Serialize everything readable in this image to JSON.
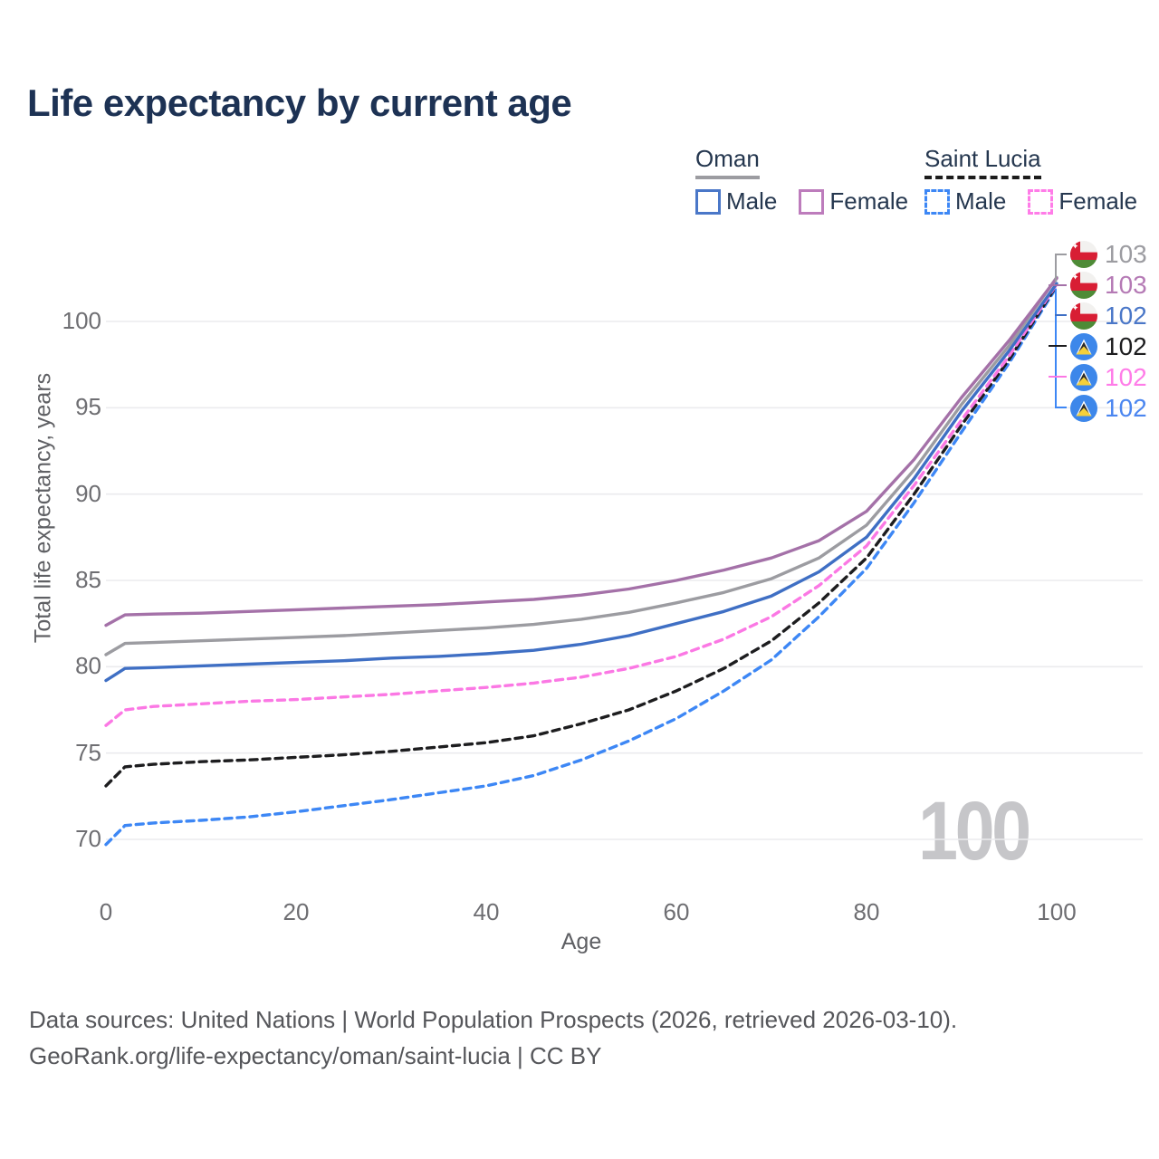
{
  "title": "Life expectancy by current age",
  "legend": {
    "groups": [
      {
        "title": "Oman",
        "underline_color": "#9c9ca1",
        "underline_style": "solid",
        "items": [
          {
            "label": "Male",
            "color": "#4a77c8",
            "dashed": false
          },
          {
            "label": "Female",
            "color": "#bd7cbc",
            "dashed": false
          }
        ]
      },
      {
        "title": "Saint Lucia",
        "underline_color": "#1c1c1c",
        "underline_style": "dashed",
        "items": [
          {
            "label": "Male",
            "color": "#3d87f5",
            "dashed": true
          },
          {
            "label": "Female",
            "color": "#ff7ce8",
            "dashed": true
          }
        ]
      }
    ]
  },
  "chart_data": {
    "type": "line",
    "title": "Life expectancy by current age",
    "xlabel": "Age",
    "ylabel": "Total life expectancy, years",
    "x_ticks": [
      0,
      20,
      40,
      60,
      80,
      100
    ],
    "y_ticks": [
      70,
      75,
      80,
      85,
      90,
      95,
      100
    ],
    "xlim": [
      0,
      100
    ],
    "ylim": [
      69,
      104
    ],
    "grid": "horizontal",
    "legend_position": "top-right",
    "ages": [
      0,
      2,
      5,
      10,
      15,
      20,
      25,
      30,
      35,
      40,
      45,
      50,
      55,
      60,
      65,
      70,
      75,
      80,
      85,
      90,
      95,
      100
    ],
    "series": [
      {
        "name": "Saint Lucia Male",
        "color": "#3d87f5",
        "dashed": true,
        "values": [
          69.7,
          70.8,
          70.95,
          71.1,
          71.3,
          71.6,
          71.95,
          72.3,
          72.7,
          73.1,
          73.7,
          74.6,
          75.7,
          77.0,
          78.6,
          80.4,
          82.9,
          85.7,
          89.5,
          93.6,
          97.6,
          102.0
        ]
      },
      {
        "name": "Saint Lucia Both sexes",
        "color": "#1d1d1f",
        "dashed": true,
        "values": [
          73.1,
          74.2,
          74.35,
          74.5,
          74.6,
          74.75,
          74.9,
          75.1,
          75.35,
          75.6,
          76.0,
          76.7,
          77.5,
          78.6,
          79.9,
          81.5,
          83.7,
          86.3,
          90.0,
          94.0,
          97.8,
          102.1
        ]
      },
      {
        "name": "Saint Lucia Female",
        "color": "#fb78e4",
        "dashed": true,
        "values": [
          76.6,
          77.5,
          77.7,
          77.85,
          78.0,
          78.1,
          78.25,
          78.4,
          78.6,
          78.8,
          79.05,
          79.4,
          79.9,
          80.6,
          81.6,
          82.9,
          84.7,
          87.0,
          90.5,
          94.3,
          98.0,
          102.15
        ]
      },
      {
        "name": "Oman Male",
        "color": "#3f6fc4",
        "dashed": false,
        "values": [
          79.2,
          79.9,
          79.95,
          80.05,
          80.15,
          80.25,
          80.35,
          80.5,
          80.6,
          80.75,
          80.95,
          81.3,
          81.8,
          82.5,
          83.2,
          84.1,
          85.5,
          87.5,
          90.9,
          94.8,
          98.3,
          102.2
        ]
      },
      {
        "name": "Oman Both sexes",
        "color": "#9c9ca1",
        "dashed": false,
        "values": [
          80.7,
          81.35,
          81.4,
          81.5,
          81.6,
          81.7,
          81.8,
          81.95,
          82.1,
          82.25,
          82.45,
          82.75,
          83.15,
          83.7,
          84.3,
          85.1,
          86.3,
          88.2,
          91.4,
          95.2,
          98.6,
          102.55
        ]
      },
      {
        "name": "Oman Female",
        "color": "#a471a8",
        "dashed": false,
        "values": [
          82.4,
          83.0,
          83.05,
          83.1,
          83.2,
          83.3,
          83.4,
          83.5,
          83.6,
          83.75,
          83.9,
          84.15,
          84.5,
          85.0,
          85.6,
          86.3,
          87.3,
          89.0,
          92.0,
          95.6,
          98.9,
          102.5
        ]
      }
    ],
    "end_labels": [
      {
        "flag": "oman",
        "value": "103",
        "color": "#9c9ca1"
      },
      {
        "flag": "oman",
        "value": "103",
        "color": "#b57ab5"
      },
      {
        "flag": "oman",
        "value": "102",
        "color": "#4a77c8"
      },
      {
        "flag": "saint-lucia",
        "value": "102",
        "color": "#1d1d1f"
      },
      {
        "flag": "saint-lucia",
        "value": "102",
        "color": "#ff7ce8"
      },
      {
        "flag": "saint-lucia",
        "value": "102",
        "color": "#4b86f0"
      }
    ],
    "hover_age_indicator": "100"
  },
  "footer": {
    "line1": "Data sources: United Nations | World Population Prospects (2026, retrieved 2026-03-10).",
    "line2": "GeoRank.org/life-expectancy/oman/saint-lucia | CC BY"
  }
}
